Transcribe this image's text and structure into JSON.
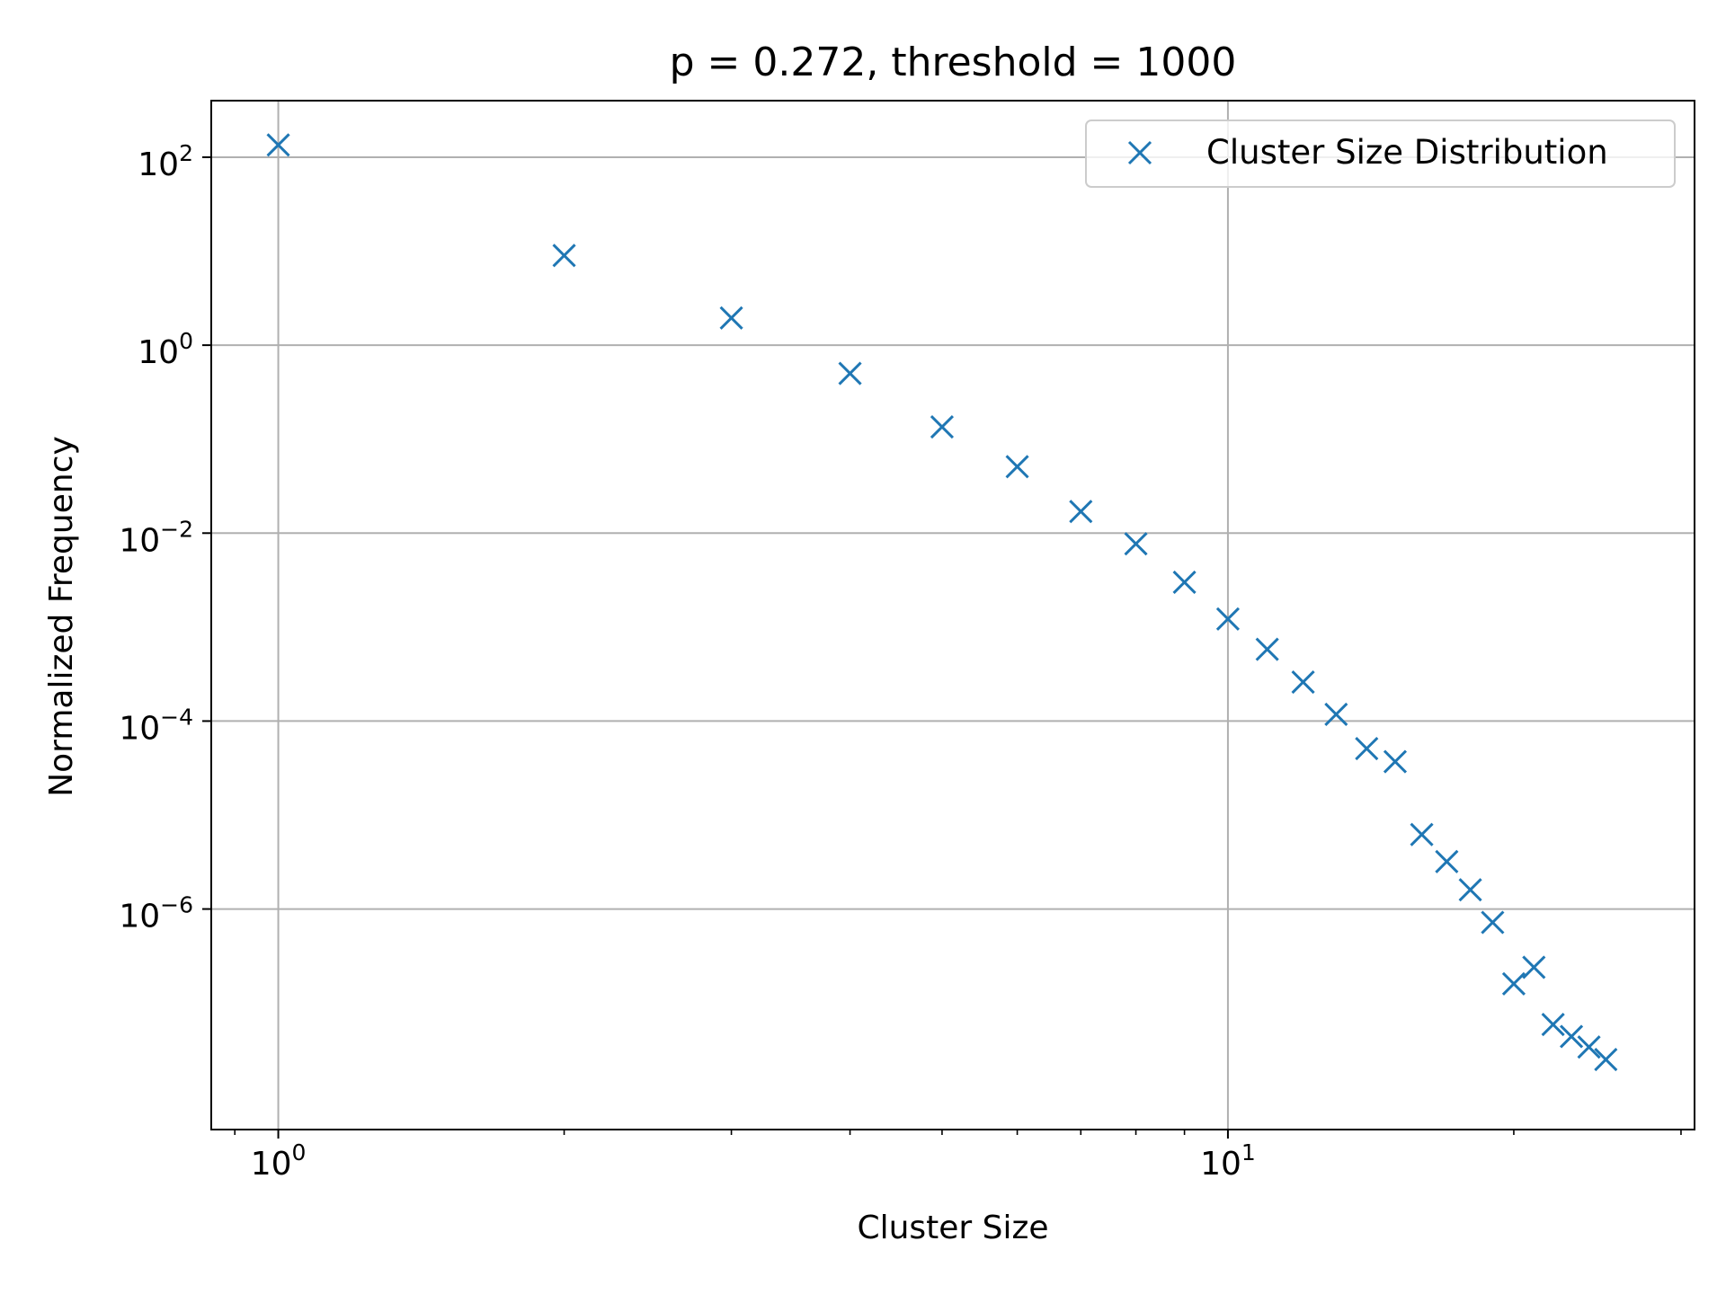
{
  "chart_data": {
    "type": "scatter",
    "title": "p = 0.272, threshold = 1000",
    "xlabel": "Cluster Size",
    "ylabel": "Normalized Frequency",
    "xscale": "log",
    "yscale": "log",
    "xlim": [
      0.85,
      31
    ],
    "ylim": [
      4.5e-09,
      400
    ],
    "x_ticks": [
      {
        "value": 1,
        "base": "10",
        "exp": "0"
      },
      {
        "value": 10,
        "base": "10",
        "exp": "1"
      }
    ],
    "y_ticks": [
      {
        "value": 100,
        "base": "10",
        "exp": "2"
      },
      {
        "value": 1,
        "base": "10",
        "exp": "0"
      },
      {
        "value": 0.01,
        "base": "10",
        "exp": "−2"
      },
      {
        "value": 0.0001,
        "base": "10",
        "exp": "−4"
      },
      {
        "value": 1e-06,
        "base": "10",
        "exp": "−6"
      }
    ],
    "grid": true,
    "legend_position": "upper-right",
    "series": [
      {
        "name": "Cluster Size Distribution",
        "marker": "x",
        "color": "#1f77b4",
        "x": [
          1,
          2,
          3,
          4,
          5,
          6,
          7,
          8,
          9,
          10,
          11,
          12,
          13,
          14,
          15,
          16,
          17,
          18,
          19,
          20,
          21,
          22,
          23,
          24,
          25
        ],
        "y": [
          135,
          9.0,
          1.95,
          0.5,
          0.135,
          0.051,
          0.017,
          0.0077,
          0.003,
          0.00122,
          0.00058,
          0.00026,
          0.000118,
          5.1e-05,
          3.7e-05,
          6.2e-06,
          3.2e-06,
          1.6e-06,
          7.2e-07,
          1.6e-07,
          2.4e-07,
          5.9e-08,
          4.4e-08,
          3.4e-08,
          2.5e-08
        ]
      }
    ]
  }
}
